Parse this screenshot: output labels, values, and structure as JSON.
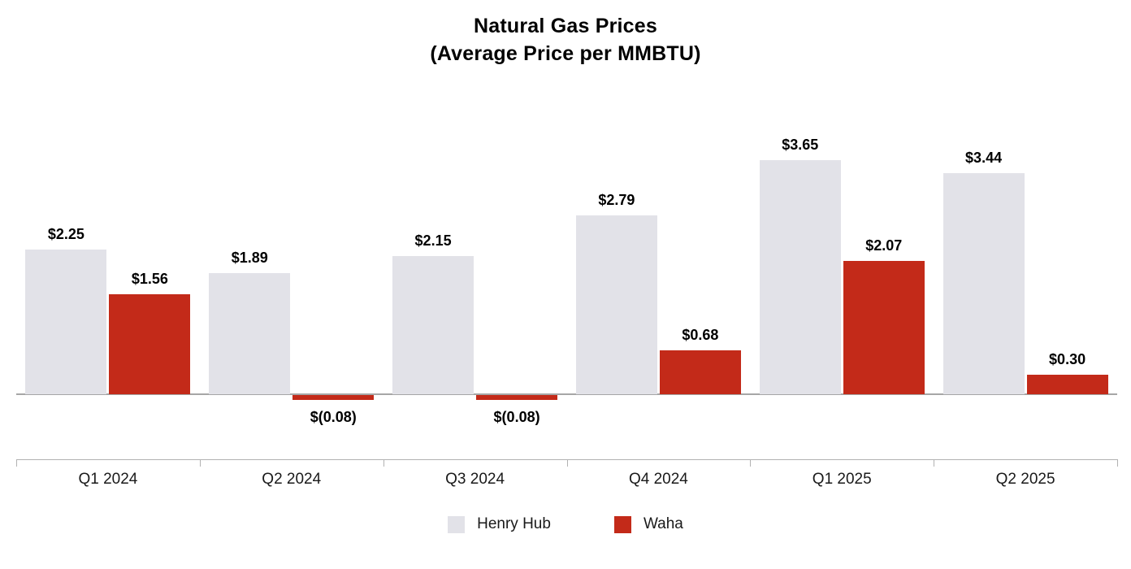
{
  "chart_data": {
    "type": "bar",
    "title": "Natural Gas Prices",
    "subtitle": "(Average Price per MMBTU)",
    "categories": [
      "Q1 2024",
      "Q2 2024",
      "Q3 2024",
      "Q4 2024",
      "Q1 2025",
      "Q2 2025"
    ],
    "series": [
      {
        "name": "Henry Hub",
        "color": "#e2e2e8",
        "values": [
          2.25,
          1.89,
          2.15,
          2.79,
          3.65,
          3.44
        ],
        "labels": [
          "$2.25",
          "$1.89",
          "$2.15",
          "$2.79",
          "$3.65",
          "$3.44"
        ]
      },
      {
        "name": "Waha",
        "color": "#c32a19",
        "values": [
          1.56,
          -0.08,
          -0.08,
          0.68,
          2.07,
          0.3
        ],
        "labels": [
          "$1.56",
          "$(0.08)",
          "$(0.08)",
          "$0.68",
          "$2.07",
          "$0.30"
        ]
      }
    ],
    "ylim": [
      -0.5,
      4.0
    ],
    "grid": false,
    "legend_position": "bottom",
    "axis_color": "#b2b2b2"
  }
}
